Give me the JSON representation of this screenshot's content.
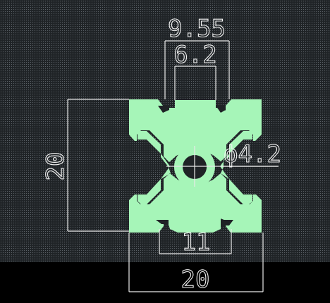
{
  "drawing": {
    "profile_color": "#a6f5b8",
    "dimension_color": "#f0f0f0",
    "background_color": "#1f2326",
    "dimensions": {
      "slot_outer": "9.55",
      "slot_inner": "6.2",
      "height": "20",
      "bore": "ϕ4.2",
      "slot_bottom": "11",
      "width": "20"
    }
  }
}
